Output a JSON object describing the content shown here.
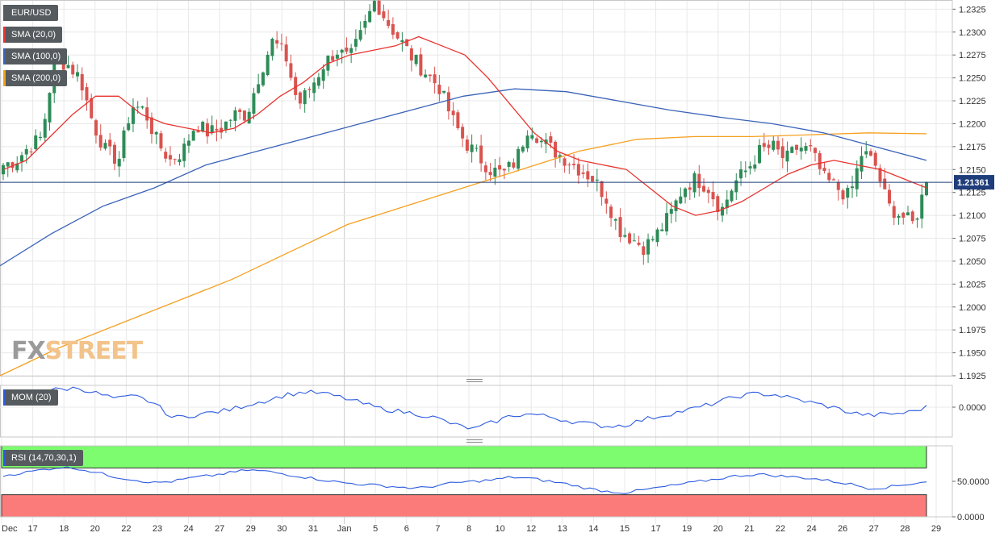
{
  "legend": {
    "pair": "EUR/USD",
    "sma20": "SMA (20,0)",
    "sma100": "SMA (100,0)",
    "sma200": "SMA (200,0)",
    "mom": "MOM (20)",
    "rsi": "RSI (14,70,30,1)"
  },
  "watermark": {
    "part1": "FX",
    "part2": "STREET"
  },
  "current_price": "1.21361",
  "colors": {
    "bull": "#2e8b57",
    "bear": "#d9534f",
    "sma20": "#e8332e",
    "sma100": "#3a63b8",
    "sma200": "#f5a020",
    "mom_line": "#2c5be0",
    "rsi_overbought": "#7cfc6e",
    "rsi_oversold": "#fb7b7b",
    "price_label_bg": "#1f3d7a",
    "grid": "#e8e8e8"
  },
  "chart_data": [
    {
      "type": "candlestick",
      "title": "EUR/USD",
      "x_tick_labels": [
        "Dec",
        "17",
        "18",
        "20",
        "22",
        "23",
        "24",
        "27",
        "29",
        "30",
        "31",
        "Jan",
        "5",
        "6",
        "7",
        "8",
        "10",
        "12",
        "13",
        "14",
        "15",
        "17",
        "19",
        "20",
        "21",
        "22",
        "24",
        "26",
        "27",
        "28",
        "29"
      ],
      "y_tick_labels": [
        "1.2325",
        "1.2300",
        "1.2275",
        "1.2250",
        "1.2225",
        "1.2200",
        "1.2175",
        "1.2150",
        "1.2125",
        "1.2100",
        "1.2075",
        "1.2050",
        "1.2025",
        "1.2000",
        "1.1975",
        "1.1950",
        "1.1925"
      ],
      "ylim": [
        1.1925,
        1.2335
      ],
      "close_anchors": [
        1.2155,
        1.216,
        1.2175,
        1.2185,
        1.227,
        1.2265,
        1.225,
        1.22,
        1.217,
        1.216,
        1.222,
        1.2215,
        1.218,
        1.216,
        1.217,
        1.22,
        1.219,
        1.2195,
        1.221,
        1.221,
        1.2255,
        1.229,
        1.2275,
        1.222,
        1.224,
        1.2265,
        1.228,
        1.227,
        1.23,
        1.2335,
        1.231,
        1.229,
        1.227,
        1.2255,
        1.224,
        1.2205,
        1.218,
        1.2165,
        1.215,
        1.2145,
        1.216,
        1.22,
        1.218,
        1.217,
        1.216,
        1.215,
        1.214,
        1.212,
        1.2085,
        1.2075,
        1.2065,
        1.208,
        1.21,
        1.213,
        1.214,
        1.213,
        1.2105,
        1.2135,
        1.215,
        1.217,
        1.2175,
        1.216,
        1.2175,
        1.217,
        1.214,
        1.213,
        1.212,
        1.217,
        1.2155,
        1.211,
        1.21,
        1.209,
        1.2136
      ],
      "sma20_anchors": [
        1.215,
        1.216,
        1.2185,
        1.221,
        1.223,
        1.223,
        1.221,
        1.22,
        1.2195,
        1.219,
        1.2195,
        1.221,
        1.223,
        1.2245,
        1.2265,
        1.2275,
        1.228,
        1.2285,
        1.2295,
        1.2285,
        1.2275,
        1.225,
        1.222,
        1.219,
        1.217,
        1.216,
        1.2155,
        1.215,
        1.213,
        1.211,
        1.21,
        1.2105,
        1.2115,
        1.213,
        1.2145,
        1.2155,
        1.216,
        1.2155,
        1.215,
        1.214,
        1.213
      ],
      "sma100_anchors": [
        1.2045,
        1.208,
        1.211,
        1.213,
        1.2155,
        1.217,
        1.2185,
        1.22,
        1.2215,
        1.223,
        1.2238,
        1.2235,
        1.2225,
        1.2215,
        1.2207,
        1.22,
        1.219,
        1.2175,
        1.216
      ],
      "sma200_anchors": [
        1.1925,
        1.1955,
        1.198,
        1.2005,
        1.203,
        1.206,
        1.209,
        1.211,
        1.213,
        1.215,
        1.217,
        1.2183,
        1.2186,
        1.2186,
        1.2188,
        1.219,
        1.2189
      ]
    },
    {
      "type": "line",
      "title": "MOM (20)",
      "y_tick_labels": [
        "0.0000"
      ],
      "values": [
        1.0,
        0.8,
        1.2,
        1.3,
        1.4,
        1.0,
        0.6,
        0.8,
        0.3,
        -0.8,
        -0.6,
        -0.4,
        -0.2,
        0.2,
        0.5,
        0.9,
        1.1,
        1.0,
        0.7,
        0.3,
        -0.1,
        -0.3,
        -0.5,
        -0.8,
        -1.3,
        -1.6,
        -1.1,
        -0.6,
        -0.5,
        -0.7,
        -1.0,
        -1.2,
        -1.4,
        -1.3,
        -0.9,
        -0.6,
        -0.3,
        0.0,
        0.4,
        0.8,
        1.0,
        0.9,
        0.6,
        0.3,
        0.0,
        -0.4,
        -0.6,
        -0.5,
        -0.4,
        0.0
      ]
    },
    {
      "type": "line",
      "title": "RSI (14,70,30,1)",
      "y_tick_labels": [
        "50.0000",
        "0.0000"
      ],
      "ylim": [
        0,
        100
      ],
      "overbought": 70,
      "oversold": 30,
      "values": [
        58,
        62,
        66,
        70,
        68,
        62,
        56,
        52,
        48,
        50,
        55,
        58,
        62,
        66,
        64,
        60,
        56,
        52,
        48,
        46,
        44,
        42,
        40,
        44,
        48,
        50,
        52,
        56,
        54,
        50,
        46,
        40,
        36,
        34,
        38,
        42,
        46,
        50,
        54,
        58,
        60,
        58,
        56,
        54,
        50,
        46,
        40,
        42,
        46,
        50
      ]
    }
  ]
}
